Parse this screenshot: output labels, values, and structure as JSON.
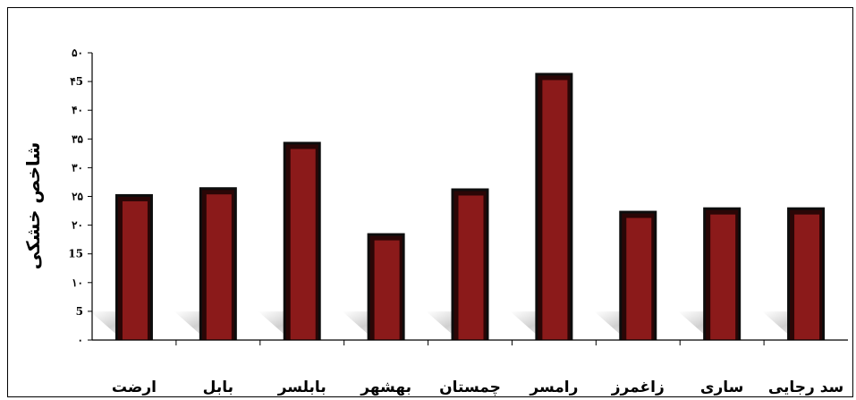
{
  "chart_data": {
    "type": "bar",
    "title": "",
    "xlabel": "",
    "ylabel": "شاخص خشکی",
    "ylim": [
      0,
      50
    ],
    "grid": false,
    "legend": "none",
    "y_ticks": [
      0,
      5,
      10,
      15,
      20,
      25,
      30,
      35,
      40,
      45,
      50
    ],
    "y_tick_labels": [
      "۰",
      "5",
      "۱۰",
      "15",
      "۲۰",
      "۲۵",
      "۳۰",
      "۳۵",
      "۴۰",
      "۴5",
      "۵۰"
    ],
    "categories": [
      "ارضت",
      "بابل",
      "بابلسر",
      "بهشهر",
      "چمستان",
      "رامسر",
      "زاغمرز",
      "ساری",
      "سد رجایی"
    ],
    "values": [
      25.4,
      26.6,
      34.5,
      18.6,
      26.4,
      46.5,
      22.5,
      23.1,
      23.1
    ],
    "colors": {
      "bar_fill": "#8b1a1a",
      "bar_edge": "#000000",
      "shadow": "#b9b9b9"
    }
  }
}
